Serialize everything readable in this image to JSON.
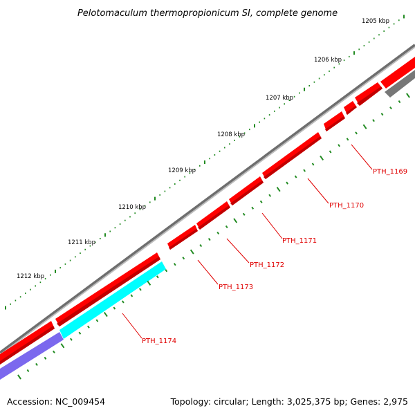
{
  "header": {
    "title": "Pelotomaculum thermopropionicum SI, complete genome"
  },
  "footer": {
    "accession": "Accession: NC_009454",
    "summary": "Topology: circular; Length: 3,025,375 bp; Genes: 2,975"
  },
  "ruler": {
    "labels": [
      "1205 kbp",
      "1206 kbp",
      "1207 kbp",
      "1208 kbp",
      "1209 kbp",
      "1210 kbp",
      "1211 kbp",
      "1212 kbp"
    ]
  },
  "genes": [
    {
      "name": "PTH_1169"
    },
    {
      "name": "PTH_1170"
    },
    {
      "name": "PTH_1171"
    },
    {
      "name": "PTH_1172"
    },
    {
      "name": "PTH_1173"
    },
    {
      "name": "PTH_1174"
    }
  ],
  "colors": {
    "backbone": "#808080",
    "cds_forward": "#ff0000",
    "cds_shadow": "#c00000",
    "rna_cyan": "#00ffff",
    "feature_purple": "#7b68ee",
    "feature_gray": "#777777",
    "tick": "#228b22",
    "label": "#e00000"
  }
}
